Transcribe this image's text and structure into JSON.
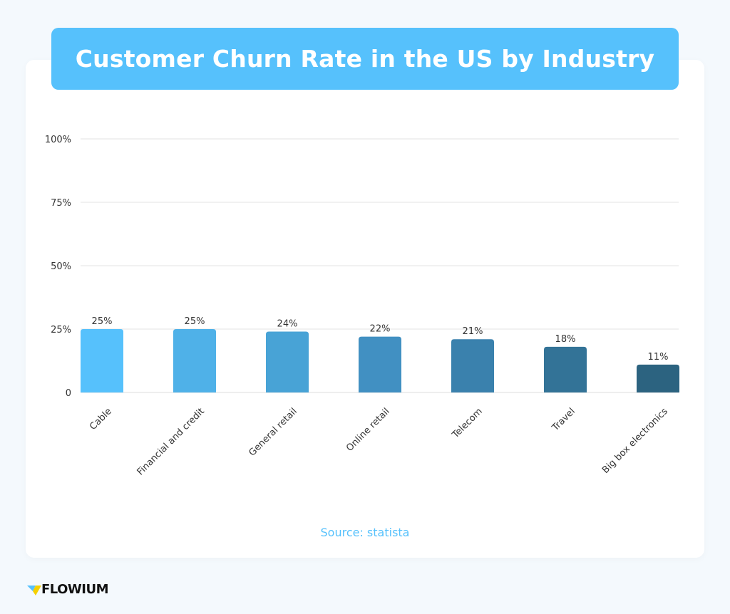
{
  "chart_data": {
    "type": "bar",
    "title": "Customer Churn Rate in the US by Industry",
    "categories": [
      "Cable",
      "Financial and credit",
      "General retail",
      "Online retail",
      "Telecom",
      "Travel",
      "Big box electronics"
    ],
    "values": [
      25,
      25,
      24,
      22,
      21,
      18,
      11
    ],
    "data_labels": [
      "25%",
      "25%",
      "24%",
      "22%",
      "21%",
      "18%",
      "11%"
    ],
    "yticks": [
      0,
      25,
      50,
      75,
      100
    ],
    "ytick_labels": [
      "0",
      "25%",
      "50%",
      "75%",
      "100%"
    ],
    "ylim": [
      0,
      100
    ],
    "grid": true,
    "colors": [
      "#56c1fc",
      "#4fb1e8",
      "#48a3d6",
      "#4190c2",
      "#3a81ad",
      "#337397",
      "#2c6380"
    ],
    "xlabel": "",
    "ylabel": ""
  },
  "source": "Source: statista",
  "brand": {
    "name": "FLOWIUM",
    "colors": [
      "#56c1fc",
      "#f5d000"
    ]
  }
}
